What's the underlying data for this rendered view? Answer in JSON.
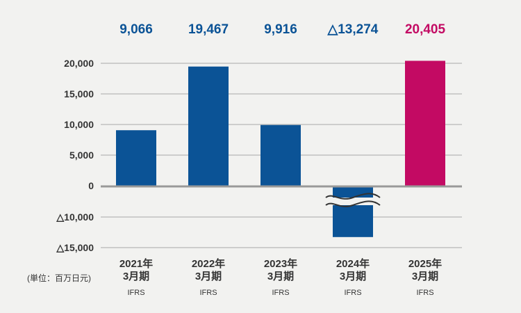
{
  "chart_data": {
    "type": "bar",
    "categories": [
      {
        "year": "2021年",
        "period": "3月期",
        "standard": "IFRS"
      },
      {
        "year": "2022年",
        "period": "3月期",
        "standard": "IFRS"
      },
      {
        "year": "2023年",
        "period": "3月期",
        "standard": "IFRS"
      },
      {
        "year": "2024年",
        "period": "3月期",
        "standard": "IFRS"
      },
      {
        "year": "2025年",
        "period": "3月期",
        "standard": "IFRS"
      }
    ],
    "values": [
      9066,
      19467,
      9916,
      -13274,
      20405
    ],
    "value_labels": [
      "9,066",
      "19,467",
      "9,916",
      "△13,274",
      "20,405"
    ],
    "colors": [
      "#0b5396",
      "#0b5396",
      "#0b5396",
      "#0b5396",
      "#c30a63"
    ],
    "y_ticks": [
      {
        "value": 20000,
        "label": "20,000"
      },
      {
        "value": 15000,
        "label": "15,000"
      },
      {
        "value": 10000,
        "label": "10,000"
      },
      {
        "value": 5000,
        "label": "5,000"
      },
      {
        "value": 0,
        "label": "0"
      },
      {
        "value": -10000,
        "label": "△10,000"
      },
      {
        "value": -15000,
        "label": "△15,000"
      }
    ],
    "axis_break": [
      -10000,
      0
    ],
    "ylim": [
      -15000,
      20000
    ],
    "unit_label": "(単位：百万日元)",
    "grid": true
  }
}
